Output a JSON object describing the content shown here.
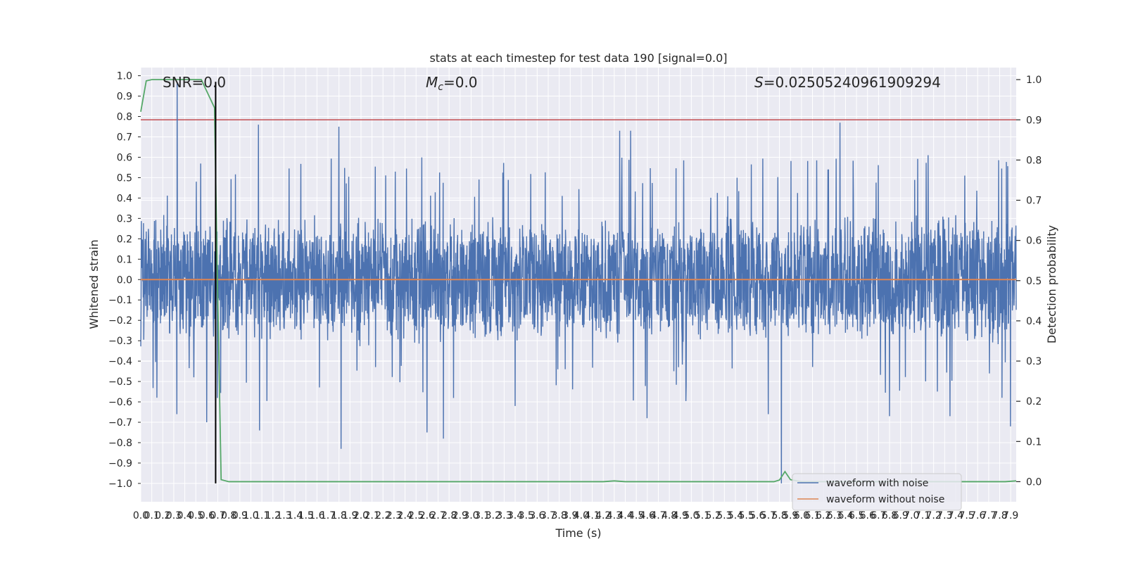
{
  "chart_data": {
    "type": "line",
    "title": "stats at each timestep for test data 190 [signal=0.0]",
    "xlabel": "Time (s)",
    "ylabel": "Whitened strain",
    "y2label": "Detection probability",
    "xlim": [
      0,
      7.95
    ],
    "ylim": [
      -1.09,
      1.04
    ],
    "y2lim": [
      -0.05,
      1.03
    ],
    "x_ticks": [
      "0.0",
      "0.1",
      "0.2",
      "0.3",
      "0.4",
      "0.5",
      "0.6",
      "0.7",
      "0.8",
      "0.9",
      "1.0",
      "1.1",
      "1.2",
      "1.3",
      "1.4",
      "1.5",
      "1.6",
      "1.7",
      "1.8",
      "1.9",
      "2.0",
      "2.1",
      "2.2",
      "2.3",
      "2.4",
      "2.5",
      "2.6",
      "2.7",
      "2.8",
      "2.9",
      "3.0",
      "3.1",
      "3.2",
      "3.3",
      "3.4",
      "3.5",
      "3.6",
      "3.7",
      "3.8",
      "3.9",
      "4.0",
      "4.1",
      "4.2",
      "4.3",
      "4.4",
      "4.5",
      "4.6",
      "4.7",
      "4.8",
      "4.9",
      "5.0",
      "5.1",
      "5.2",
      "5.3",
      "5.4",
      "5.5",
      "5.6",
      "5.7",
      "5.8",
      "5.9",
      "6.0",
      "6.1",
      "6.2",
      "6.3",
      "6.4",
      "6.5",
      "6.6",
      "6.7",
      "6.8",
      "6.9",
      "7.0",
      "7.1",
      "7.2",
      "7.3",
      "7.4",
      "7.5",
      "7.6",
      "7.7",
      "7.8",
      "7.9"
    ],
    "y_ticks": [
      "-1.0",
      "-0.9",
      "-0.8",
      "-0.7",
      "-0.6",
      "-0.5",
      "-0.4",
      "-0.3",
      "-0.2",
      "-0.1",
      "0.0",
      "0.1",
      "0.2",
      "0.3",
      "0.4",
      "0.5",
      "0.6",
      "0.7",
      "0.8",
      "0.9",
      "1.0"
    ],
    "y2_ticks": [
      "0.0",
      "0.1",
      "0.2",
      "0.3",
      "0.4",
      "0.5",
      "0.6",
      "0.7",
      "0.8",
      "0.9",
      "1.0"
    ],
    "annotations": {
      "snr": "SNR=0.0",
      "mc_symbol": "M",
      "mc_sub": "c",
      "mc_value": "=0.0",
      "s_symbol": "S",
      "s_value": "=0.02505240961909294"
    },
    "series": [
      {
        "name": "waveform with noise",
        "color": "#4c72b0",
        "axis": "left",
        "noise_amplitude": 0.3,
        "peaks": [
          [
            0.33,
            0.97
          ],
          [
            0.33,
            -0.66
          ],
          [
            0.6,
            -0.7
          ],
          [
            1.07,
            0.76
          ],
          [
            1.08,
            -0.74
          ],
          [
            1.8,
            0.75
          ],
          [
            1.82,
            -0.83
          ],
          [
            2.6,
            -0.75
          ],
          [
            2.75,
            -0.78
          ],
          [
            3.4,
            -0.62
          ],
          [
            4.35,
            0.73
          ],
          [
            4.45,
            0.73
          ],
          [
            4.6,
            -0.68
          ],
          [
            5.7,
            -0.66
          ],
          [
            5.82,
            -1.0
          ],
          [
            6.35,
            0.77
          ],
          [
            6.8,
            -0.67
          ],
          [
            7.15,
            0.61
          ],
          [
            7.35,
            -0.67
          ],
          [
            7.9,
            -0.72
          ]
        ]
      },
      {
        "name": "waveform without noise",
        "color": "#dd8452",
        "axis": "left",
        "x": [
          0,
          7.95
        ],
        "y": [
          0,
          0
        ]
      },
      {
        "name": "",
        "color": "#55a868",
        "axis": "right",
        "x": [
          0,
          0.05,
          0.1,
          0.5,
          0.55,
          0.67,
          0.69,
          0.73,
          0.8,
          4.2,
          4.3,
          4.4,
          5.5,
          5.75,
          5.8,
          5.85,
          5.9,
          6.0,
          7.2,
          7.85,
          7.95
        ],
        "y": [
          0.92,
          0.997,
          1.0,
          1.0,
          1.0,
          0.93,
          0.6,
          0.005,
          0.0,
          0.0,
          0.002,
          0.0,
          0.0,
          0.0,
          0.004,
          0.025,
          0.005,
          0.0,
          0.0,
          0.0,
          0.002
        ]
      }
    ],
    "hlines": [
      {
        "axis": "right",
        "y": 0.9,
        "color": "#c44e52"
      },
      {
        "axis": "right",
        "y": 0.3,
        "color": "#ffffff"
      },
      {
        "axis": "right",
        "y": 0.4,
        "color": "#ffffff"
      },
      {
        "axis": "right",
        "y": 0.5,
        "color": "#ffffff"
      },
      {
        "axis": "right",
        "y": 0.6,
        "color": "#ffffff"
      },
      {
        "axis": "right",
        "y": 0.7,
        "color": "#ffffff"
      }
    ],
    "vlines": [
      {
        "x": 0.68,
        "y_from": -1.0,
        "y_to": 0.97,
        "color": "#000000"
      }
    ],
    "grid": true,
    "legend_placement": "lower-right",
    "colors": {
      "background": "#eaeaf2",
      "grid": "#ffffff",
      "text": "#262626"
    }
  }
}
